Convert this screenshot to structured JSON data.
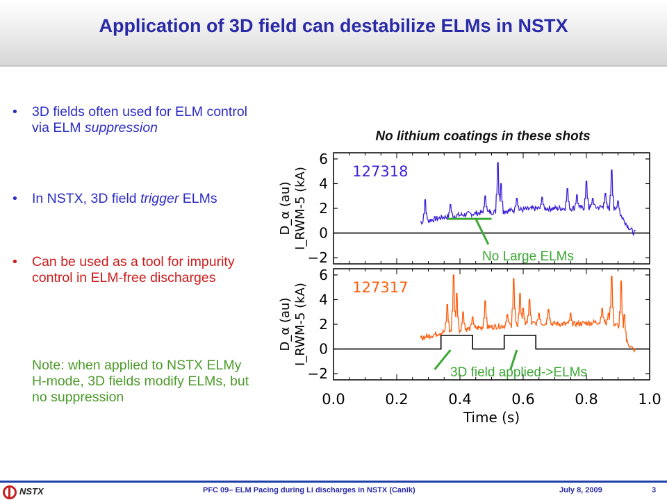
{
  "slide": {
    "title": "Application of 3D field can destabilize ELMs in NSTX",
    "bullets": [
      {
        "dot": "•",
        "parts": [
          {
            "t": "3D fields often used for ELM control via ELM ",
            "s": ""
          },
          {
            "t": "suppression",
            "s": "ital"
          }
        ]
      },
      {
        "dot": "•",
        "parts": [
          {
            "t": "In NSTX, 3D field ",
            "s": ""
          },
          {
            "t": "trigger",
            "s": "ital"
          },
          {
            "t": " ELMs",
            "s": ""
          }
        ]
      },
      {
        "dot": "•",
        "parts": [
          {
            "t": "Can be used as a tool for impurity control in ELM-free discharges",
            "s": ""
          }
        ]
      },
      {
        "dot": "",
        "parts": [
          {
            "t": "Note: when applied to NSTX ELMy H-mode, 3D fields modify ELMs, but no suppression",
            "s": ""
          }
        ]
      }
    ],
    "chart_title": "No lithium coatings in these shots",
    "footer": {
      "logo_text": "NSTX",
      "center": "PFC 09– ELM Pacing during Li discharges in NSTX (Canik)",
      "date": "July 8, 2009",
      "page": "3"
    }
  },
  "colors": {
    "title": "#2a2aa8",
    "blue_text": "#2c2cc4",
    "red_text": "#cc1b1b",
    "green_text": "#4a9a28",
    "shot_top": "#3b1fd6",
    "shot_bottom": "#ff5a0a",
    "annotation": "#3aa832",
    "footer_line": "#1e3fa8"
  },
  "chart_data": {
    "type": "line",
    "xlabel": "Time (s)",
    "x_ticks": [
      "0.0",
      "0.2",
      "0.4",
      "0.6",
      "0.8",
      "1.0"
    ],
    "xlim": [
      0.0,
      1.0
    ],
    "panels": [
      {
        "shot": "127318",
        "color": "#3b1fd6",
        "ylabel_top": "D_α (au)",
        "ylabel_bottom": "I_RWM-5 (kA)",
        "ylim": [
          -2.5,
          6.5
        ],
        "y_ticks": [
          "6",
          "4",
          "2",
          "0",
          "−2"
        ],
        "baseline_points": [
          [
            0.28,
            0.9
          ],
          [
            0.35,
            1.3
          ],
          [
            0.45,
            1.6
          ],
          [
            0.55,
            1.8
          ],
          [
            0.65,
            2.0
          ],
          [
            0.75,
            2.0
          ],
          [
            0.85,
            2.1
          ],
          [
            0.9,
            1.8
          ],
          [
            0.93,
            0.6
          ],
          [
            0.95,
            0.0
          ]
        ],
        "elm_spikes": [
          [
            0.29,
            2.7
          ],
          [
            0.37,
            2.3
          ],
          [
            0.48,
            3.0
          ],
          [
            0.52,
            5.7
          ],
          [
            0.53,
            4.0
          ],
          [
            0.58,
            2.8
          ],
          [
            0.66,
            2.9
          ],
          [
            0.74,
            3.6
          ],
          [
            0.77,
            3.1
          ],
          [
            0.8,
            4.2
          ],
          [
            0.82,
            2.8
          ],
          [
            0.86,
            3.2
          ],
          [
            0.88,
            5.1
          ],
          [
            0.9,
            2.6
          ]
        ],
        "coil_current": [
          [
            0.0,
            0.0
          ],
          [
            1.0,
            0.0
          ]
        ],
        "annotation": "No Large ELMs"
      },
      {
        "shot": "127317",
        "color": "#ff5a0a",
        "ylabel_top": "D_α (au)",
        "ylabel_bottom": "I_RWM-5 (kA)",
        "ylim": [
          -2.5,
          6.5
        ],
        "y_ticks": [
          "6",
          "4",
          "2",
          "0",
          "−2"
        ],
        "baseline_points": [
          [
            0.28,
            0.9
          ],
          [
            0.35,
            1.4
          ],
          [
            0.45,
            1.7
          ],
          [
            0.55,
            1.9
          ],
          [
            0.65,
            2.1
          ],
          [
            0.75,
            2.0
          ],
          [
            0.85,
            2.2
          ],
          [
            0.9,
            1.9
          ],
          [
            0.93,
            0.5
          ],
          [
            0.95,
            -0.1
          ]
        ],
        "elm_spikes": [
          [
            0.36,
            3.6
          ],
          [
            0.38,
            6.0
          ],
          [
            0.39,
            4.5
          ],
          [
            0.41,
            3.0
          ],
          [
            0.44,
            2.6
          ],
          [
            0.48,
            3.9
          ],
          [
            0.55,
            2.8
          ],
          [
            0.57,
            5.7
          ],
          [
            0.59,
            4.5
          ],
          [
            0.6,
            3.3
          ],
          [
            0.62,
            4.0
          ],
          [
            0.65,
            2.9
          ],
          [
            0.68,
            3.2
          ],
          [
            0.75,
            2.9
          ],
          [
            0.85,
            3.3
          ],
          [
            0.87,
            2.9
          ],
          [
            0.88,
            5.9
          ],
          [
            0.91,
            5.5
          ],
          [
            0.92,
            2.8
          ]
        ],
        "coil_current": [
          [
            0.0,
            0.0
          ],
          [
            0.34,
            0.0
          ],
          [
            0.34,
            1.1
          ],
          [
            0.44,
            1.1
          ],
          [
            0.44,
            0.0
          ],
          [
            0.54,
            0.0
          ],
          [
            0.54,
            1.1
          ],
          [
            0.64,
            1.1
          ],
          [
            0.64,
            0.0
          ],
          [
            1.0,
            0.0
          ]
        ],
        "annotation": "3D field applied->ELMs"
      }
    ]
  }
}
